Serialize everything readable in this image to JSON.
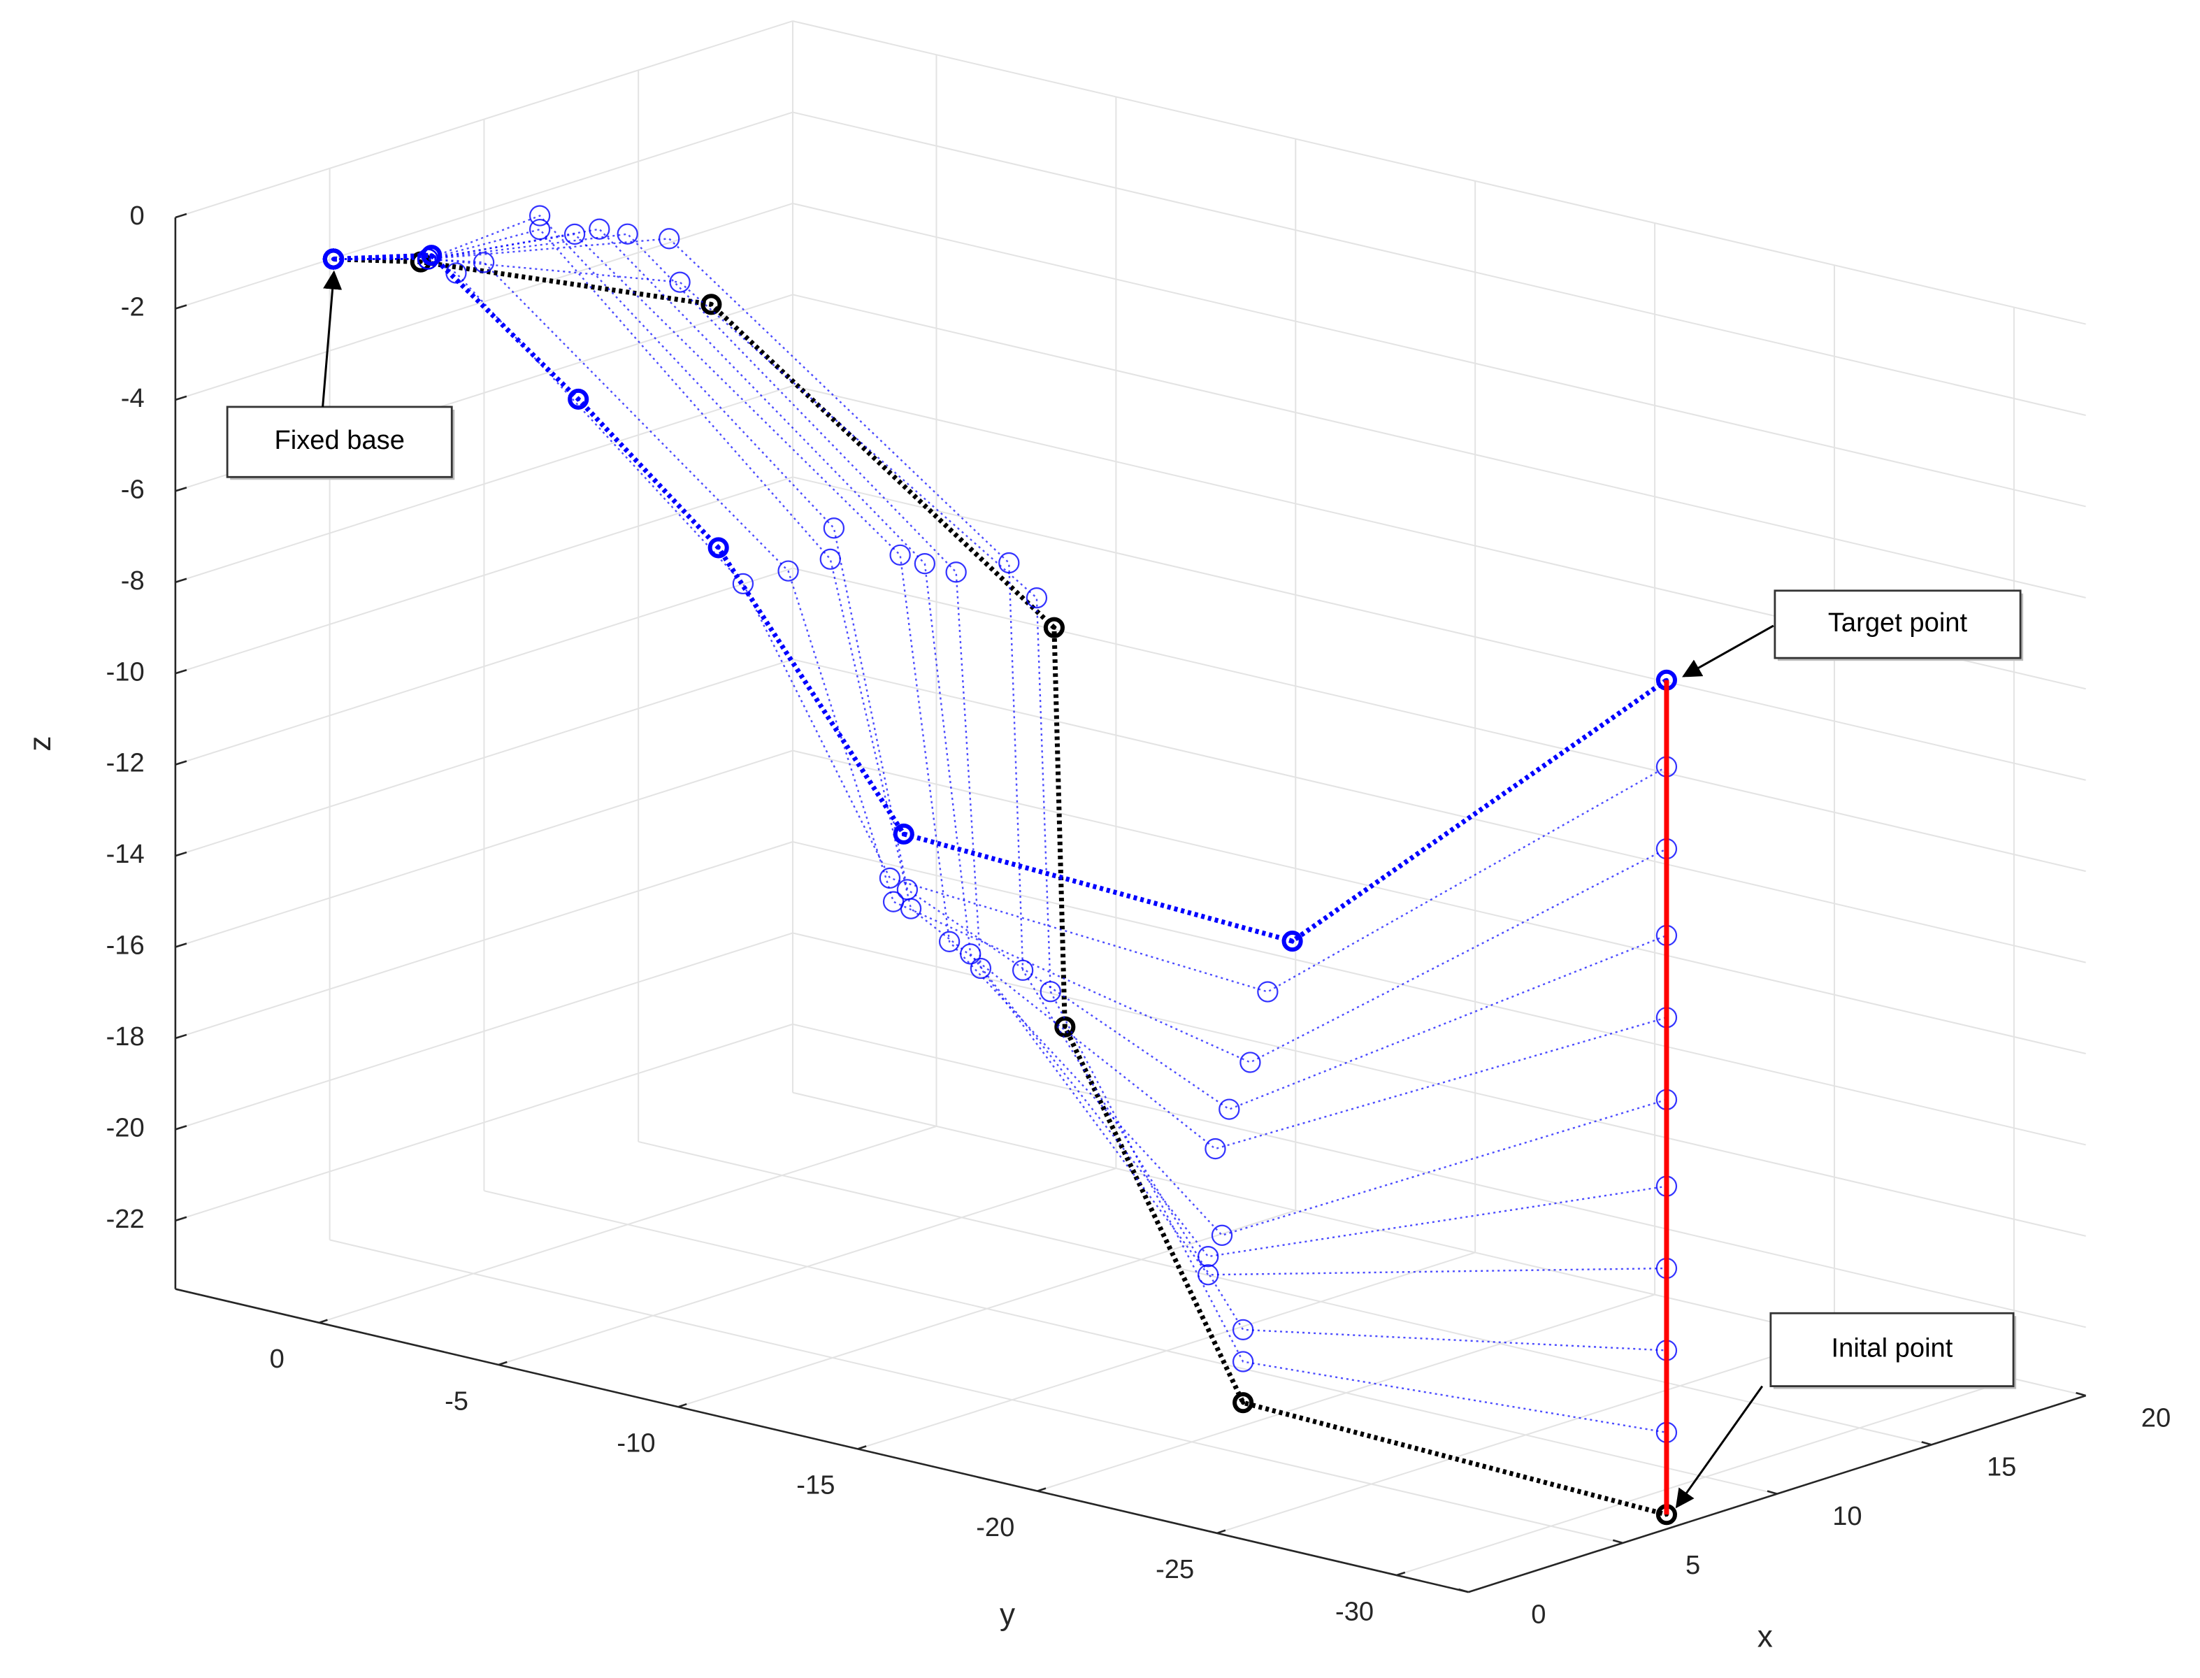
{
  "chart_data": {
    "type": "line3d",
    "xlabel": "x",
    "ylabel": "y",
    "zlabel": "z",
    "xlim": [
      0,
      20
    ],
    "ylim": [
      -32,
      4
    ],
    "zlim": [
      -23.5,
      0
    ],
    "xticks": [
      0,
      5,
      10,
      15,
      20
    ],
    "yticks": [
      0,
      -5,
      -10,
      -15,
      -20,
      -25,
      -30
    ],
    "zticks": [
      0,
      -2,
      -4,
      -6,
      -8,
      -10,
      -12,
      -14,
      -16,
      -18,
      -20,
      -22
    ],
    "grid": true,
    "annotations": [
      "Fixed base",
      "Target point",
      "Inital point"
    ],
    "series": [
      {
        "color": "#000000",
        "line_width": 3.5,
        "line_style": "dotted",
        "marker": "o",
        "x": [
          0,
          0.5,
          2.0,
          3.8,
          3.8,
          4.8,
          7.0
        ],
        "y": [
          -0.4,
          -2.4,
          -9.2,
          -17.2,
          -17.5,
          -21.6,
          -31.5
        ],
        "z": [
          -0.1,
          0.1,
          0.1,
          -5.9,
          -14.6,
          -22.3,
          -23.4
        ]
      },
      {
        "color": "#0000ff",
        "line_width": 1.2,
        "line_style": "dotted",
        "marker": "o",
        "x": [
          0,
          0.5,
          1.8,
          3.7,
          3.8,
          4.8,
          7.0
        ],
        "y": [
          -0.4,
          -2.6,
          -8.5,
          -16.8,
          -17.1,
          -21.6,
          -31.5
        ],
        "z": [
          -0.1,
          0.2,
          0.5,
          -5.3,
          -13.9,
          -21.4,
          -21.6
        ]
      },
      {
        "color": "#0000ff",
        "line_width": 1.2,
        "line_style": "dotted",
        "marker": "o",
        "x": [
          0,
          0.5,
          1.8,
          3.5,
          3.6,
          4.8,
          7.0
        ],
        "y": [
          -0.4,
          -2.6,
          -8.2,
          -16.2,
          -16.5,
          -21.6,
          -31.5
        ],
        "z": [
          -0.1,
          0.2,
          1.4,
          -4.6,
          -13.5,
          -20.7,
          -19.8
        ]
      },
      {
        "color": "#0000ff",
        "line_width": 1.2,
        "line_style": "dotted",
        "marker": "o",
        "x": [
          0,
          0.5,
          1.5,
          3.3,
          3.4,
          4.6,
          7.0
        ],
        "y": [
          -0.4,
          -2.6,
          -7.3,
          -14.9,
          -15.5,
          -20.8,
          -31.5
        ],
        "z": [
          -0.1,
          0.2,
          1.4,
          -5.0,
          -13.6,
          -19.6,
          -18.0
        ]
      },
      {
        "color": "#0000ff",
        "line_width": 1.2,
        "line_style": "dotted",
        "marker": "o",
        "x": [
          0,
          0.5,
          1.4,
          3.1,
          3.3,
          4.6,
          7.0
        ],
        "y": [
          -0.4,
          -2.6,
          -6.6,
          -14.2,
          -15.3,
          -20.8,
          -31.5
        ],
        "z": [
          -0.1,
          0.2,
          1.4,
          -4.9,
          -13.3,
          -19.2,
          -16.2
        ]
      },
      {
        "color": "#0000ff",
        "line_width": 1.2,
        "line_style": "dotted",
        "marker": "o",
        "x": [
          0,
          0.5,
          1.3,
          3.0,
          3.2,
          4.7,
          7.0
        ],
        "y": [
          -0.4,
          -2.6,
          -6.0,
          -13.6,
          -14.8,
          -21.1,
          -31.5
        ],
        "z": [
          -0.1,
          0.2,
          1.2,
          -4.8,
          -13.1,
          -18.7,
          -14.3
        ]
      },
      {
        "color": "#0000ff",
        "line_width": 1.2,
        "line_style": "dotted",
        "marker": "o",
        "x": [
          0,
          0.5,
          1.1,
          2.6,
          3.0,
          4.6,
          7.0
        ],
        "y": [
          -0.4,
          -2.6,
          -5.2,
          -12.0,
          -13.9,
          -21.0,
          -31.5
        ],
        "z": [
          -0.1,
          0.2,
          1.2,
          -5.1,
          -12.5,
          -16.8,
          -12.5
        ]
      },
      {
        "color": "#0000ff",
        "line_width": 1.2,
        "line_style": "dotted",
        "marker": "o",
        "x": [
          0,
          0.5,
          1.1,
          2.6,
          3.0,
          4.7,
          7.0
        ],
        "y": [
          -0.4,
          -2.6,
          -5.2,
          -12.1,
          -13.8,
          -21.3,
          -31.5
        ],
        "z": [
          -0.1,
          0.2,
          1.5,
          -4.4,
          -12.1,
          -15.9,
          -10.7
        ]
      },
      {
        "color": "#0000ff",
        "line_width": 1.2,
        "line_style": "dotted",
        "marker": "o",
        "x": [
          0,
          0.5,
          0.8,
          2.4,
          2.9,
          4.8,
          7.0
        ],
        "y": [
          -0.4,
          -2.6,
          -3.9,
          -11.0,
          -13.5,
          -21.8,
          -31.5
        ],
        "z": [
          -0.1,
          0.2,
          0.3,
          -5.5,
          -12.4,
          -14.8,
          -8.8
        ]
      },
      {
        "color": "#0000ff",
        "line_width": 1.2,
        "line_style": "dotted",
        "marker": "o",
        "x": [
          0,
          0.5,
          0.6,
          2.1,
          2.9,
          4.9,
          7.0
        ],
        "y": [
          -0.4,
          -2.6,
          -3.3,
          -10.0,
          -13.4,
          -22.2,
          -31.5
        ],
        "z": [
          -0.1,
          0.2,
          0.0,
          -5.9,
          -11.9,
          -13.2,
          -7.0
        ]
      },
      {
        "color": "#0000ff",
        "line_width": 3.5,
        "line_style": "dotted",
        "marker": "o",
        "x": [
          0,
          0.5,
          1.3,
          2.0,
          3.0,
          5.0,
          7.0
        ],
        "y": [
          -0.4,
          -2.7,
          -6.1,
          -9.4,
          -13.7,
          -22.8,
          -31.5
        ],
        "z": [
          -0.1,
          0.3,
          -2.4,
          -5.2,
          -10.9,
          -12.0,
          -5.1
        ]
      },
      {
        "color": "#ff0000",
        "line_width": 3.5,
        "line_style": "solid",
        "marker": "none",
        "x": [
          7.0,
          7.0,
          7.0,
          7.0,
          7.0,
          7.0,
          7.0,
          7.0,
          7.0,
          7.0,
          7.0
        ],
        "y": [
          -31.5,
          -31.5,
          -31.5,
          -31.5,
          -31.5,
          -31.5,
          -31.5,
          -31.5,
          -31.5,
          -31.5,
          -31.5
        ],
        "z": [
          -23.4,
          -21.6,
          -19.8,
          -18.0,
          -16.2,
          -14.3,
          -12.5,
          -10.7,
          -8.8,
          -7.0,
          -5.1
        ]
      }
    ]
  }
}
